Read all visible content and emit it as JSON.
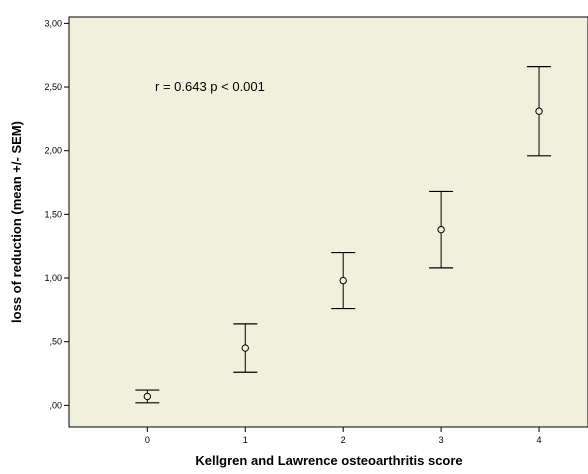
{
  "chart_data": {
    "type": "scatter",
    "variant": "error-bar",
    "annotation": "r = 0.643 p < 0.001",
    "xlabel": "Kellgren and Lawrence osteoarthritis score",
    "ylabel": "loss of reduction (mean +/- SEM)",
    "x_ticks": [
      {
        "value": 0,
        "label": "0"
      },
      {
        "value": 1,
        "label": "1"
      },
      {
        "value": 2,
        "label": "2"
      },
      {
        "value": 3,
        "label": "3"
      },
      {
        "value": 4,
        "label": "4"
      }
    ],
    "y_ticks": [
      {
        "value": 0,
        "label": ",00"
      },
      {
        "value": 0.5,
        "label": ",50"
      },
      {
        "value": 1.0,
        "label": "1,00"
      },
      {
        "value": 1.5,
        "label": "1,50"
      },
      {
        "value": 2.0,
        "label": "2,00"
      },
      {
        "value": 2.5,
        "label": "2,50"
      },
      {
        "value": 3.0,
        "label": "3,00"
      }
    ],
    "xlim": [
      -0.8,
      4.5
    ],
    "ylim": [
      -0.17,
      3.05
    ],
    "grid": false,
    "points": [
      {
        "x": 0,
        "mean": 0.07,
        "lower": 0.02,
        "upper": 0.12
      },
      {
        "x": 1,
        "mean": 0.45,
        "lower": 0.26,
        "upper": 0.64
      },
      {
        "x": 2,
        "mean": 0.98,
        "lower": 0.76,
        "upper": 1.2
      },
      {
        "x": 3,
        "mean": 1.38,
        "lower": 1.08,
        "upper": 1.68
      },
      {
        "x": 4,
        "mean": 2.31,
        "lower": 1.96,
        "upper": 2.66
      }
    ],
    "colors": {
      "plot_background": "#f0f0dc",
      "frame": "#000000",
      "marks": "#000000",
      "page_background": "#ffffff"
    }
  }
}
